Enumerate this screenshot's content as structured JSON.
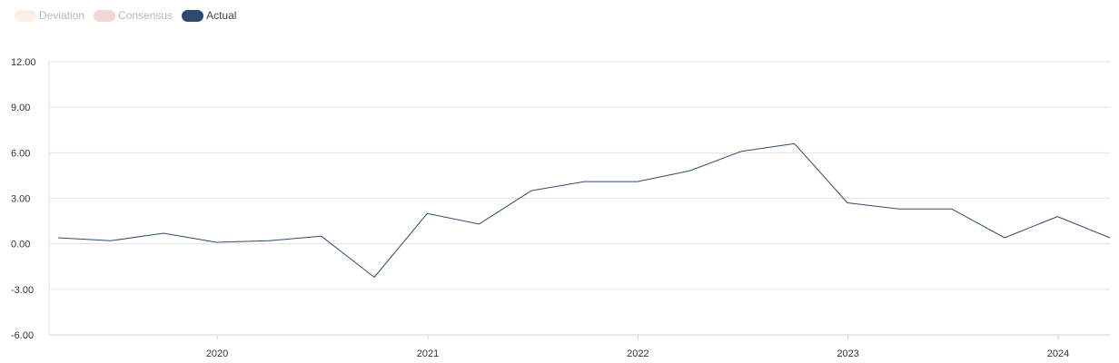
{
  "legend": [
    {
      "label": "Deviation",
      "color": "#fbeee6",
      "dim": true
    },
    {
      "label": "Consensus",
      "color": "#f5d6d6",
      "dim": true
    },
    {
      "label": "Actual",
      "color": "#2e4a72",
      "dim": false
    }
  ],
  "chart_data": {
    "type": "line",
    "title": "",
    "xlabel": "",
    "ylabel": "",
    "ylim": [
      -6,
      12
    ],
    "xlim": [
      "2019-03-15",
      "2024-03-31"
    ],
    "grid": true,
    "legend_position": "top-left",
    "y_ticks": [
      "12.00",
      "9.00",
      "6.00",
      "3.00",
      "0.00",
      "-3.00",
      "-6.00"
    ],
    "x_ticks": [
      "2020",
      "2021",
      "2022",
      "2023",
      "2024"
    ],
    "series": [
      {
        "name": "Actual",
        "color": "#2e4a72",
        "points": [
          {
            "x": "2019-03-31",
            "y": 0.4
          },
          {
            "x": "2019-06-30",
            "y": 0.2
          },
          {
            "x": "2019-09-30",
            "y": 0.7
          },
          {
            "x": "2019-12-31",
            "y": 0.1
          },
          {
            "x": "2020-03-31",
            "y": 0.2
          },
          {
            "x": "2020-06-30",
            "y": 0.5
          },
          {
            "x": "2020-09-30",
            "y": -2.2
          },
          {
            "x": "2020-12-31",
            "y": 2.0
          },
          {
            "x": "2021-03-31",
            "y": 1.3
          },
          {
            "x": "2021-06-30",
            "y": 3.5
          },
          {
            "x": "2021-09-30",
            "y": 4.1
          },
          {
            "x": "2021-12-31",
            "y": 4.1
          },
          {
            "x": "2022-03-31",
            "y": 4.8
          },
          {
            "x": "2022-06-30",
            "y": 6.1
          },
          {
            "x": "2022-09-30",
            "y": 6.6
          },
          {
            "x": "2022-12-31",
            "y": 2.7
          },
          {
            "x": "2023-03-31",
            "y": 2.3
          },
          {
            "x": "2023-06-30",
            "y": 2.3
          },
          {
            "x": "2023-09-30",
            "y": 0.4
          },
          {
            "x": "2023-12-31",
            "y": 1.8
          },
          {
            "x": "2024-03-31",
            "y": 0.4
          }
        ]
      }
    ]
  }
}
